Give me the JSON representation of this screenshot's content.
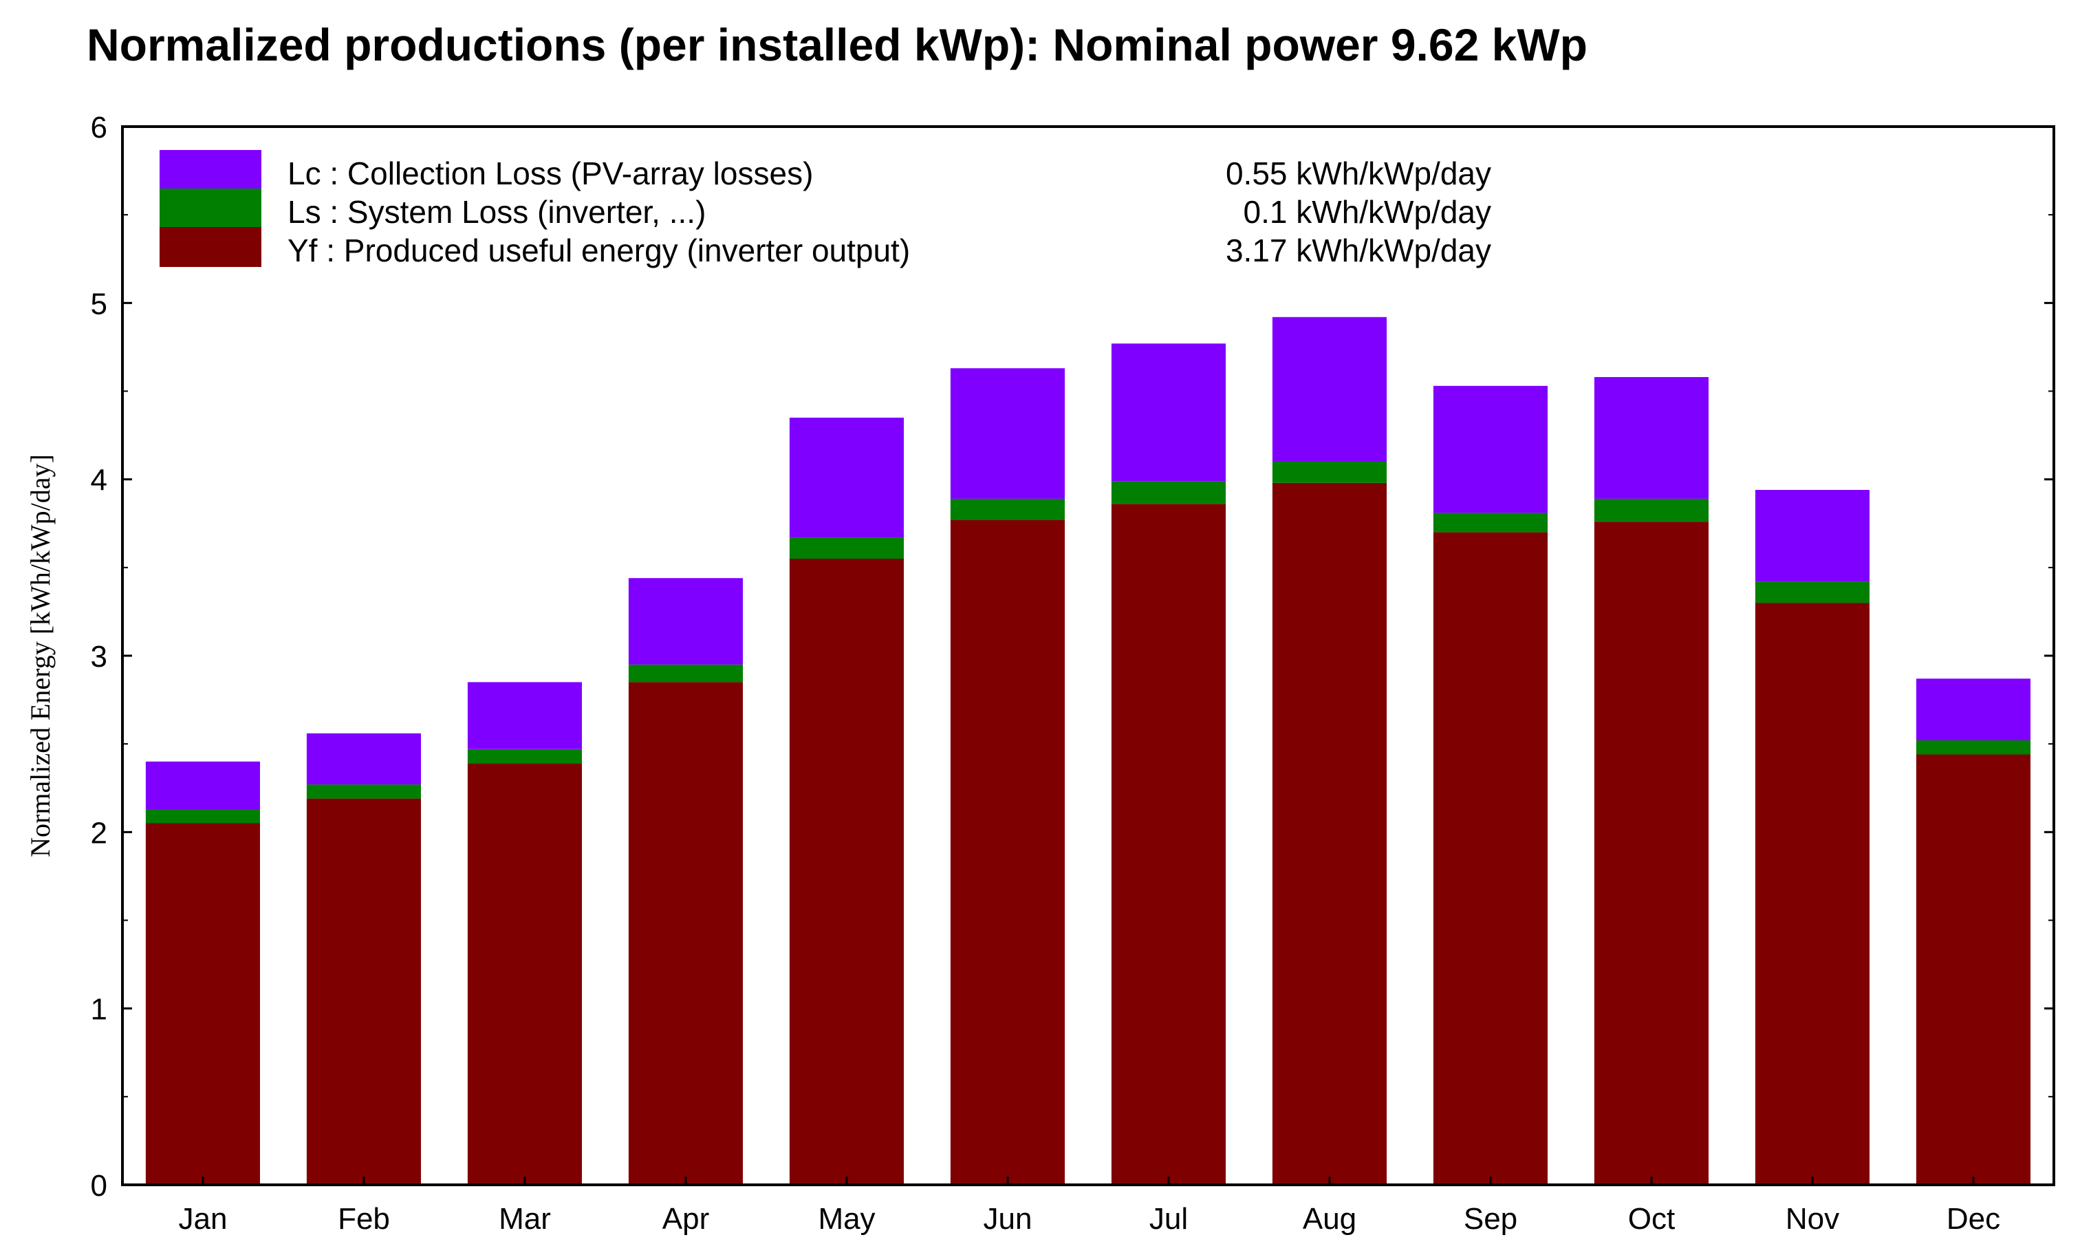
{
  "chart_data": {
    "type": "bar",
    "stacked": true,
    "title": "Normalized productions (per installed kWp):  Nominal power 9.62 kWp",
    "xlabel": "",
    "ylabel": "Normalized Energy [kWh/kWp/day]",
    "ylim": [
      0,
      6
    ],
    "yticks": [
      "0",
      "1",
      "2",
      "3",
      "4",
      "5",
      "6"
    ],
    "categories": [
      "Jan",
      "Feb",
      "Mar",
      "Apr",
      "May",
      "Jun",
      "Jul",
      "Aug",
      "Sep",
      "Oct",
      "Nov",
      "Dec"
    ],
    "series": [
      {
        "name": "Yf",
        "color": "#7f0000",
        "values": [
          2.05,
          2.19,
          2.39,
          2.85,
          3.55,
          3.77,
          3.86,
          3.98,
          3.7,
          3.76,
          3.3,
          2.44
        ]
      },
      {
        "name": "Ls",
        "color": "#007f00",
        "values": [
          0.08,
          0.08,
          0.08,
          0.1,
          0.12,
          0.12,
          0.13,
          0.12,
          0.11,
          0.13,
          0.12,
          0.08
        ]
      },
      {
        "name": "Lc",
        "color": "#8000ff",
        "values": [
          0.27,
          0.29,
          0.38,
          0.49,
          0.68,
          0.74,
          0.78,
          0.82,
          0.72,
          0.69,
          0.52,
          0.35
        ]
      }
    ],
    "legend": {
      "position": "top-left",
      "entries": [
        {
          "label": "Lc : Collection Loss (PV-array losses)",
          "value": "0.55 kWh/kWp/day",
          "color": "#8000ff"
        },
        {
          "label": "Ls : System Loss  (inverter, ...)",
          "value": "0.1 kWh/kWp/day",
          "color": "#007f00"
        },
        {
          "label": "Yf : Produced useful energy  (inverter output)",
          "value": "3.17 kWh/kWp/day",
          "color": "#7f0000"
        }
      ]
    },
    "grid": false
  }
}
